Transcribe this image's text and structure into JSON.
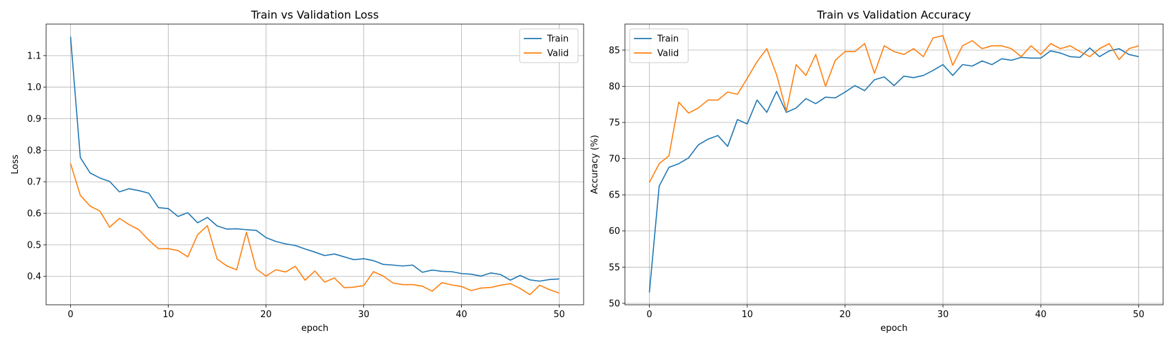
{
  "chart_data": [
    {
      "type": "line",
      "title": "Train vs Validation Loss",
      "xlabel": "epoch",
      "ylabel": "Loss",
      "xlim": [
        -2.5,
        52.5
      ],
      "ylim": [
        0.31,
        1.2
      ],
      "xticks": [
        0,
        10,
        20,
        30,
        40,
        50
      ],
      "yticks": [
        0.4,
        0.5,
        0.6,
        0.7,
        0.8,
        0.9,
        1.0,
        1.1
      ],
      "grid": true,
      "legend_position": "top-right",
      "x": [
        0,
        1,
        2,
        3,
        4,
        5,
        6,
        7,
        8,
        9,
        10,
        11,
        12,
        13,
        14,
        15,
        16,
        17,
        18,
        19,
        20,
        21,
        22,
        23,
        24,
        25,
        26,
        27,
        28,
        29,
        30,
        31,
        32,
        33,
        34,
        35,
        36,
        37,
        38,
        39,
        40,
        41,
        42,
        43,
        44,
        45,
        46,
        47,
        48,
        49,
        50
      ],
      "series": [
        {
          "name": "Train",
          "color": "#1f77b4",
          "values": [
            1.16,
            0.777,
            0.728,
            0.712,
            0.701,
            0.668,
            0.678,
            0.672,
            0.664,
            0.618,
            0.615,
            0.59,
            0.602,
            0.57,
            0.587,
            0.56,
            0.55,
            0.551,
            0.548,
            0.546,
            0.523,
            0.511,
            0.503,
            0.498,
            0.487,
            0.477,
            0.466,
            0.471,
            0.462,
            0.453,
            0.456,
            0.45,
            0.438,
            0.436,
            0.433,
            0.436,
            0.413,
            0.42,
            0.416,
            0.415,
            0.409,
            0.407,
            0.401,
            0.411,
            0.406,
            0.388,
            0.403,
            0.389,
            0.385,
            0.39,
            0.392
          ]
        },
        {
          "name": "Valid",
          "color": "#ff7f0e",
          "values": [
            0.758,
            0.657,
            0.623,
            0.607,
            0.556,
            0.584,
            0.564,
            0.548,
            0.515,
            0.488,
            0.488,
            0.482,
            0.462,
            0.532,
            0.561,
            0.455,
            0.433,
            0.421,
            0.54,
            0.424,
            0.401,
            0.421,
            0.414,
            0.432,
            0.388,
            0.417,
            0.382,
            0.395,
            0.364,
            0.366,
            0.371,
            0.415,
            0.401,
            0.379,
            0.374,
            0.374,
            0.369,
            0.353,
            0.38,
            0.373,
            0.368,
            0.355,
            0.363,
            0.365,
            0.372,
            0.377,
            0.362,
            0.342,
            0.372,
            0.358,
            0.347
          ]
        }
      ]
    },
    {
      "type": "line",
      "title": "Train vs Validation Accuracy",
      "xlabel": "epoch",
      "ylabel": "Accuracy (%)",
      "xlim": [
        -2.5,
        52.5
      ],
      "ylim": [
        49.8,
        88.6
      ],
      "xticks": [
        0,
        10,
        20,
        30,
        40,
        50
      ],
      "yticks": [
        50,
        55,
        60,
        65,
        70,
        75,
        80,
        85
      ],
      "grid": true,
      "legend_position": "top-left",
      "x": [
        0,
        1,
        2,
        3,
        4,
        5,
        6,
        7,
        8,
        9,
        10,
        11,
        12,
        13,
        14,
        15,
        16,
        17,
        18,
        19,
        20,
        21,
        22,
        23,
        24,
        25,
        26,
        27,
        28,
        29,
        30,
        31,
        32,
        33,
        34,
        35,
        36,
        37,
        38,
        39,
        40,
        41,
        42,
        43,
        44,
        45,
        46,
        47,
        48,
        49,
        50
      ],
      "series": [
        {
          "name": "Train",
          "color": "#1f77b4",
          "values": [
            51.5,
            66.2,
            68.8,
            69.3,
            70.1,
            71.9,
            72.7,
            73.2,
            71.7,
            75.4,
            74.8,
            78.1,
            76.4,
            79.3,
            76.4,
            77.0,
            78.3,
            77.6,
            78.5,
            78.4,
            79.2,
            80.1,
            79.4,
            80.9,
            81.3,
            80.1,
            81.4,
            81.2,
            81.5,
            82.2,
            83.0,
            81.5,
            83.0,
            82.8,
            83.5,
            83.0,
            83.8,
            83.6,
            84.0,
            83.9,
            83.9,
            84.9,
            84.6,
            84.1,
            84.0,
            85.3,
            84.1,
            84.9,
            85.2,
            84.4,
            84.1
          ]
        },
        {
          "name": "Valid",
          "color": "#ff7f0e",
          "values": [
            66.7,
            69.3,
            70.4,
            77.8,
            76.3,
            77.0,
            78.1,
            78.1,
            79.2,
            78.9,
            81.1,
            83.4,
            85.2,
            81.6,
            76.6,
            83.0,
            81.5,
            84.4,
            80.0,
            83.6,
            84.8,
            84.8,
            85.9,
            81.8,
            85.6,
            84.8,
            84.4,
            85.2,
            84.1,
            86.7,
            87.0,
            82.9,
            85.6,
            86.3,
            85.2,
            85.6,
            85.6,
            85.2,
            84.1,
            85.6,
            84.4,
            85.9,
            85.2,
            85.6,
            84.8,
            84.1,
            85.2,
            85.9,
            83.7,
            85.2,
            85.6
          ]
        }
      ]
    }
  ]
}
